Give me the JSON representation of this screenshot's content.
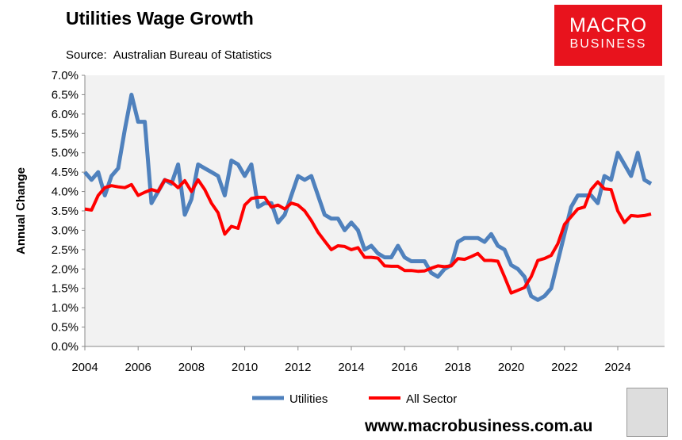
{
  "header": {
    "title": "Utilities Wage Growth",
    "source_label": "Source:",
    "source_value": "Australian Bureau of Statistics"
  },
  "logo": {
    "line1": "MACRO",
    "line2": "BUSINESS"
  },
  "footer": {
    "url": "www.macrobusiness.com.au"
  },
  "chart_data": {
    "type": "line",
    "title": "Utilities Wage Growth",
    "xlabel": "",
    "ylabel": "Annual Change",
    "xlim": [
      2004,
      2025.75
    ],
    "ylim": [
      0,
      7
    ],
    "x_start": 2004,
    "x_step": 0.25,
    "xticks": [
      "2004",
      "2006",
      "2008",
      "2010",
      "2012",
      "2014",
      "2016",
      "2018",
      "2020",
      "2022",
      "2024"
    ],
    "yticks": [
      "0.0%",
      "0.5%",
      "1.0%",
      "1.5%",
      "2.0%",
      "2.5%",
      "3.0%",
      "3.5%",
      "4.0%",
      "4.5%",
      "5.0%",
      "5.5%",
      "6.0%",
      "6.5%",
      "7.0%"
    ],
    "legend_position": "bottom",
    "series": [
      {
        "name": "Utilities",
        "color": "#4f81bd",
        "values": [
          4.5,
          4.3,
          4.5,
          3.9,
          4.4,
          4.6,
          5.6,
          6.5,
          5.8,
          5.8,
          3.7,
          4.0,
          4.3,
          4.2,
          4.7,
          3.4,
          3.8,
          4.7,
          4.6,
          4.5,
          4.4,
          3.9,
          4.8,
          4.7,
          4.4,
          4.7,
          3.6,
          3.7,
          3.7,
          3.2,
          3.4,
          3.9,
          4.4,
          4.3,
          4.4,
          3.9,
          3.4,
          3.3,
          3.3,
          3.0,
          3.2,
          3.0,
          2.5,
          2.6,
          2.4,
          2.3,
          2.3,
          2.6,
          2.3,
          2.2,
          2.2,
          2.2,
          1.9,
          1.8,
          2.0,
          2.1,
          2.7,
          2.8,
          2.8,
          2.8,
          2.7,
          2.9,
          2.6,
          2.5,
          2.1,
          2.0,
          1.8,
          1.3,
          1.2,
          1.3,
          1.5,
          2.2,
          2.9,
          3.6,
          3.9,
          3.9,
          3.9,
          3.7,
          4.4,
          4.3,
          5.0,
          4.7,
          4.4,
          5.0,
          4.3,
          4.2
        ]
      },
      {
        "name": "All Sector",
        "color": "#ff0000",
        "values": [
          3.55,
          3.52,
          3.9,
          4.1,
          4.15,
          4.12,
          4.1,
          4.18,
          3.9,
          3.98,
          4.05,
          4.0,
          4.3,
          4.25,
          4.1,
          4.28,
          4.0,
          4.3,
          4.05,
          3.7,
          3.45,
          2.9,
          3.1,
          3.05,
          3.65,
          3.82,
          3.85,
          3.85,
          3.6,
          3.65,
          3.55,
          3.7,
          3.65,
          3.5,
          3.25,
          2.95,
          2.72,
          2.5,
          2.6,
          2.58,
          2.5,
          2.55,
          2.3,
          2.3,
          2.28,
          2.08,
          2.07,
          2.07,
          1.96,
          1.96,
          1.94,
          1.95,
          2.02,
          2.08,
          2.06,
          2.08,
          2.27,
          2.25,
          2.32,
          2.4,
          2.22,
          2.22,
          2.2,
          1.8,
          1.38,
          1.45,
          1.52,
          1.8,
          2.22,
          2.27,
          2.35,
          2.65,
          3.15,
          3.35,
          3.55,
          3.6,
          4.05,
          4.25,
          4.07,
          4.05,
          3.5,
          3.2,
          3.38,
          3.36,
          3.38,
          3.42
        ]
      }
    ]
  }
}
